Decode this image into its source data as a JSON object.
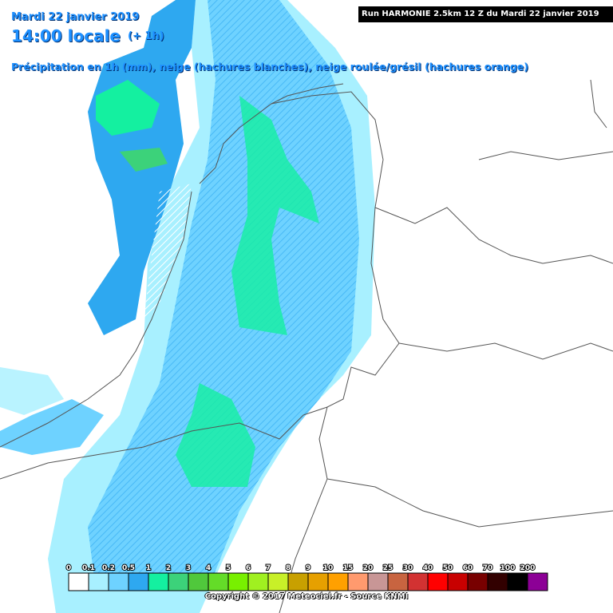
{
  "header": {
    "date": "Mardi 22 janvier 2019",
    "time": "14:00 locale",
    "step": "(+ 1h)",
    "description": "Précipitation en 1h (mm), neige (hachures blanches), neige roulée/grésil (hachures orange)",
    "run": "Run HARMONIE 2.5km 12 Z du Mardi 22 janvier 2019"
  },
  "legend": [
    {
      "label": "0",
      "color": "#ffffff"
    },
    {
      "label": "0.1",
      "color": "#a8f0ff"
    },
    {
      "label": "0.2",
      "color": "#6ed2ff"
    },
    {
      "label": "0.5",
      "color": "#2ea8f0"
    },
    {
      "label": "1",
      "color": "#14f0a0"
    },
    {
      "label": "2",
      "color": "#3cd27a"
    },
    {
      "label": "3",
      "color": "#50c83c"
    },
    {
      "label": "4",
      "color": "#64dc28"
    },
    {
      "label": "5",
      "color": "#78f000"
    },
    {
      "label": "6",
      "color": "#a0f020"
    },
    {
      "label": "7",
      "color": "#c8f028"
    },
    {
      "label": "8",
      "color": "#c8a000"
    },
    {
      "label": "9",
      "color": "#e6a000"
    },
    {
      "label": "10",
      "color": "#ffa000"
    },
    {
      "label": "15",
      "color": "#ff9a6e"
    },
    {
      "label": "20",
      "color": "#c89696"
    },
    {
      "label": "25",
      "color": "#c86440"
    },
    {
      "label": "30",
      "color": "#d23232"
    },
    {
      "label": "40",
      "color": "#ff0000"
    },
    {
      "label": "50",
      "color": "#c80000"
    },
    {
      "label": "60",
      "color": "#780000"
    },
    {
      "label": "70",
      "color": "#320000"
    },
    {
      "label": "100",
      "color": "#000000"
    },
    {
      "label": "200",
      "color": "#8c0096"
    }
  ],
  "copyright": "Copyright © 2017 Meteociel.fr - Source KNMI"
}
